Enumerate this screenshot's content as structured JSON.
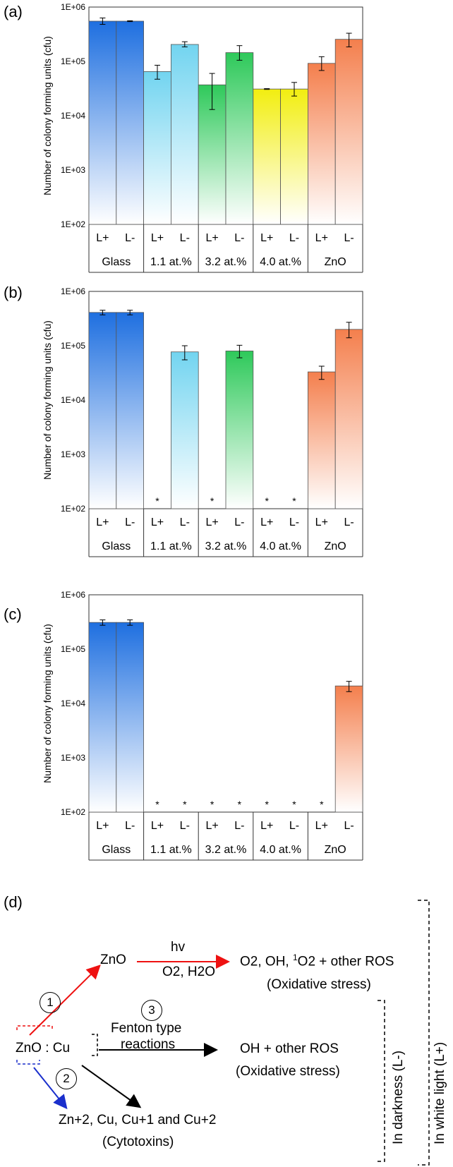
{
  "chart_data": [
    {
      "type": "bar",
      "title": "(a)",
      "ylabel": "Number of colony forming units (cfu)",
      "yscale": "log",
      "ylim": [
        100,
        1000000
      ],
      "yticks": [
        "1E+02",
        "1E+03",
        "1E+04",
        "1E+05",
        "1E+06"
      ],
      "groups": [
        "Glass",
        "1.1 at.%",
        "3.2 at.%",
        "4.0 at.%",
        "ZnO"
      ],
      "light_labels": [
        "L+",
        "L-"
      ],
      "bars": [
        {
          "group": "Glass",
          "light": "L+",
          "value": 550000,
          "err": [
            480000,
            630000
          ],
          "color": "#1e6fe0"
        },
        {
          "group": "Glass",
          "light": "L-",
          "value": 550000,
          "err": [
            540000,
            560000
          ],
          "color": "#1e6fe0"
        },
        {
          "group": "1.1 at.%",
          "light": "L+",
          "value": 65000,
          "err": [
            47000,
            85000
          ],
          "color": "#72d4f0"
        },
        {
          "group": "1.1 at.%",
          "light": "L-",
          "value": 205000,
          "err": [
            185000,
            230000
          ],
          "color": "#72d4f0"
        },
        {
          "group": "3.2 at.%",
          "light": "L+",
          "value": 37000,
          "err": [
            13000,
            60000
          ],
          "color": "#2ec95a"
        },
        {
          "group": "3.2 at.%",
          "light": "L-",
          "value": 145000,
          "err": [
            105000,
            195000
          ],
          "color": "#2ec95a"
        },
        {
          "group": "4.0 at.%",
          "light": "L+",
          "value": 31000,
          "err": [
            30500,
            31500
          ],
          "color": "#f2ee10"
        },
        {
          "group": "4.0 at.%",
          "light": "L-",
          "value": 31000,
          "err": [
            23000,
            41000
          ],
          "color": "#f2ee10"
        },
        {
          "group": "ZnO",
          "light": "L+",
          "value": 92000,
          "err": [
            68000,
            122000
          ],
          "color": "#f47f4d"
        },
        {
          "group": "ZnO",
          "light": "L-",
          "value": 255000,
          "err": [
            185000,
            330000
          ],
          "color": "#f47f4d"
        }
      ]
    },
    {
      "type": "bar",
      "title": "(b)",
      "ylabel": "Number of colony forming units (cfu)",
      "yscale": "log",
      "ylim": [
        100,
        1000000
      ],
      "yticks": [
        "1E+02",
        "1E+03",
        "1E+04",
        "1E+05",
        "1E+06"
      ],
      "groups": [
        "Glass",
        "1.1 at.%",
        "3.2 at.%",
        "4.0 at.%",
        "ZnO"
      ],
      "light_labels": [
        "L+",
        "L-"
      ],
      "bars": [
        {
          "group": "Glass",
          "light": "L+",
          "value": 410000,
          "err": [
            370000,
            450000
          ],
          "color": "#1e6fe0"
        },
        {
          "group": "Glass",
          "light": "L-",
          "value": 410000,
          "err": [
            370000,
            450000
          ],
          "color": "#1e6fe0"
        },
        {
          "group": "1.1 at.%",
          "light": "L+",
          "value": null,
          "star": "*",
          "color": "#72d4f0"
        },
        {
          "group": "1.1 at.%",
          "light": "L-",
          "value": 77000,
          "err": [
            55000,
            100000
          ],
          "color": "#72d4f0"
        },
        {
          "group": "3.2 at.%",
          "light": "L+",
          "value": null,
          "star": "*",
          "color": "#2ec95a"
        },
        {
          "group": "3.2 at.%",
          "light": "L-",
          "value": 80000,
          "err": [
            60000,
            102000
          ],
          "color": "#2ec95a"
        },
        {
          "group": "4.0 at.%",
          "light": "L+",
          "value": null,
          "star": "*",
          "color": "#f2ee10"
        },
        {
          "group": "4.0 at.%",
          "light": "L-",
          "value": null,
          "star": "*",
          "color": "#f2ee10"
        },
        {
          "group": "ZnO",
          "light": "L+",
          "value": 33000,
          "err": [
            24000,
            42000
          ],
          "color": "#f47f4d"
        },
        {
          "group": "ZnO",
          "light": "L-",
          "value": 200000,
          "err": [
            140000,
            270000
          ],
          "color": "#f47f4d"
        }
      ]
    },
    {
      "type": "bar",
      "title": "(c)",
      "ylabel": "Number of colony forming units (cfu)",
      "yscale": "log",
      "ylim": [
        100,
        1000000
      ],
      "yticks": [
        "1E+02",
        "1E+03",
        "1E+04",
        "1E+05",
        "1E+06"
      ],
      "groups": [
        "Glass",
        "1.1 at.%",
        "3.2 at.%",
        "4.0 at.%",
        "ZnO"
      ],
      "light_labels": [
        "L+",
        "L-"
      ],
      "bars": [
        {
          "group": "Glass",
          "light": "L+",
          "value": 310000,
          "err": [
            275000,
            345000
          ],
          "color": "#1e6fe0"
        },
        {
          "group": "Glass",
          "light": "L-",
          "value": 310000,
          "err": [
            275000,
            345000
          ],
          "color": "#1e6fe0"
        },
        {
          "group": "1.1 at.%",
          "light": "L+",
          "value": null,
          "star": "*",
          "color": "#72d4f0"
        },
        {
          "group": "1.1 at.%",
          "light": "L-",
          "value": null,
          "star": "*",
          "color": "#72d4f0"
        },
        {
          "group": "3.2 at.%",
          "light": "L+",
          "value": null,
          "star": "*",
          "color": "#2ec95a"
        },
        {
          "group": "3.2 at.%",
          "light": "L-",
          "value": null,
          "star": "*",
          "color": "#2ec95a"
        },
        {
          "group": "4.0 at.%",
          "light": "L+",
          "value": null,
          "star": "*",
          "color": "#f2ee10"
        },
        {
          "group": "4.0 at.%",
          "light": "L-",
          "value": null,
          "star": "*",
          "color": "#f2ee10"
        },
        {
          "group": "ZnO",
          "light": "L+",
          "value": null,
          "star": "*",
          "color": "#f47f4d"
        },
        {
          "group": "ZnO",
          "light": "L-",
          "value": 21000,
          "err": [
            16500,
            25500
          ],
          "color": "#f47f4d"
        }
      ]
    }
  ],
  "diagram": {
    "title": "(d)",
    "zno_top": "ZnO",
    "hv": "hv",
    "o2_h2o": "O2, H2O",
    "ros_top_a": "O2",
    "ros_top_b": ", ",
    "ros_top_c": "OH, ",
    "ros_top_d": "1",
    "ros_top_e": "O2",
    "ros_top_f": " + other ROS",
    "stress_top": "(Oxidative stress)",
    "zno_cu_a": "ZnO",
    "zno_cu_b": " : Cu",
    "fenton_1": "Fenton type",
    "fenton_2": "reactions",
    "ros_mid": "OH + other ROS",
    "stress_mid": "(Oxidative stress)",
    "ions": "Zn+2, Cu, Cu+1 and Cu+2",
    "cytotoxins": "(Cytotoxins)",
    "darkness": "In darkness (L-)",
    "white_light": "In white light (L+)",
    "step1": "1",
    "step2": "2",
    "step3": "3",
    "colors": {
      "red": "#ee1111",
      "blue": "#1a2fcc",
      "black": "#000000"
    }
  }
}
